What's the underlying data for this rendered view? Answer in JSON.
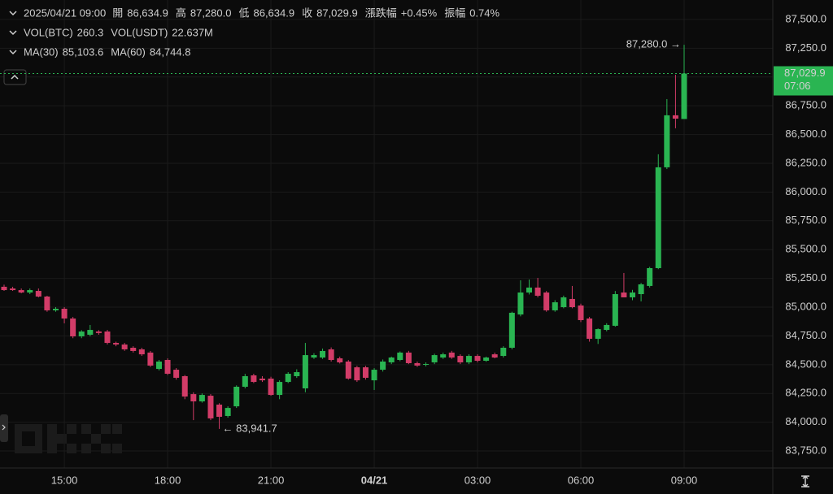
{
  "chart_data": {
    "type": "candlestick",
    "header": {
      "time": "2025/04/21 09:00",
      "rows": [
        [
          {
            "label": "開",
            "value": "86,634.9",
            "color": "#2fbf5b"
          },
          {
            "label": "高",
            "value": "87,280.0",
            "color": "#2fbf5b"
          },
          {
            "label": "低",
            "value": "86,634.9",
            "color": "#2fbf5b"
          },
          {
            "label": "收",
            "value": "87,029.9",
            "color": "#2fbf5b"
          },
          {
            "label": "漲跌幅",
            "value": "+0.45%",
            "color": "#2fbf5b"
          },
          {
            "label": "振幅",
            "value": "0.74%",
            "color": "#2fbf5b"
          }
        ],
        [
          {
            "label": "VOL(BTC)",
            "value": "260.3",
            "color": "#f09a37"
          },
          {
            "label": "VOL(USDT)",
            "value": "22.637M",
            "color": "#f09a37"
          }
        ],
        [
          {
            "label": "MA(30)",
            "value": "85,103.6",
            "color": "#f09a37"
          },
          {
            "label": "MA(60)",
            "value": "84,744.8",
            "color": "#e8457c"
          }
        ]
      ]
    },
    "categories": [
      null,
      null,
      null,
      null,
      null,
      null,
      null,
      "15:00",
      null,
      null,
      null,
      null,
      null,
      null,
      null,
      null,
      null,
      null,
      null,
      "18:00",
      null,
      null,
      null,
      null,
      null,
      null,
      null,
      null,
      null,
      null,
      null,
      "21:00",
      null,
      null,
      null,
      null,
      null,
      null,
      null,
      null,
      null,
      null,
      null,
      "04/21",
      null,
      null,
      null,
      null,
      null,
      null,
      null,
      null,
      null,
      null,
      null,
      "03:00",
      null,
      null,
      null,
      null,
      null,
      null,
      null,
      null,
      null,
      null,
      null,
      "06:00",
      null,
      null,
      null,
      null,
      null,
      null,
      null,
      null,
      null,
      null,
      null,
      "09:00"
    ],
    "open": [
      85177,
      85162,
      85148,
      85127,
      85141,
      85092,
      84972,
      84986,
      84901,
      84746,
      84760,
      84788,
      84788,
      84689,
      84675,
      84647,
      84633,
      84605,
      84463,
      84541,
      84456,
      84400,
      84244,
      84181,
      84230,
      84153,
      84054,
      84138,
      84308,
      84407,
      84379,
      84379,
      84237,
      84350,
      84400,
      84294,
      84562,
      84562,
      84633,
      84555,
      84527,
      84477,
      84477,
      84364,
      84456,
      84520,
      84541,
      84605,
      84513,
      84500,
      84520,
      84562,
      84605,
      84576,
      84520,
      84576,
      84534,
      84590,
      84576,
      84647,
      84936,
      85127,
      85170,
      85127,
      84972,
      85000,
      85071,
      85014,
      84901,
      84725,
      84802,
      84838,
      85127,
      85085,
      85113,
      85184,
      85339,
      86215,
      86667,
      86634.9
    ],
    "high": [
      85195,
      85177,
      85162,
      85162,
      85162,
      85099,
      85000,
      85000,
      84915,
      84800,
      84845,
      84800,
      84802,
      84700,
      84689,
      84660,
      84647,
      84619,
      84541,
      84555,
      84470,
      84410,
      84260,
      84250,
      84244,
      84165,
      84138,
      84320,
      84420,
      84421,
      84400,
      84395,
      84364,
      84435,
      84460,
      84689,
      84600,
      84640,
      84650,
      84570,
      84540,
      84490,
      84490,
      84470,
      84545,
      84570,
      84615,
      84620,
      84527,
      84520,
      84595,
      84605,
      84620,
      84590,
      84590,
      84590,
      84570,
      84605,
      84660,
      84960,
      85233,
      85240,
      85254,
      85140,
      85060,
      85100,
      85184,
      85030,
      84915,
      84815,
      84860,
      85140,
      85297,
      85150,
      85210,
      85350,
      86328,
      86808,
      87020,
      87280
    ],
    "low": [
      85141,
      85141,
      85120,
      85113,
      85085,
      84960,
      84960,
      84859,
      84730,
      84730,
      84746,
      84760,
      84675,
      84660,
      84620,
      84605,
      84576,
      84480,
      84450,
      84410,
      84370,
      84200,
      84018,
      84170,
      84018,
      83941.7,
      84040,
      84124,
      84294,
      84340,
      84350,
      84230,
      84200,
      84340,
      84385,
      84260,
      84550,
      84550,
      84527,
      84510,
      84370,
      84350,
      84370,
      84280,
      84440,
      84505,
      84530,
      84505,
      84480,
      84485,
      84505,
      84550,
      84550,
      84505,
      84505,
      84520,
      84525,
      84555,
      84562,
      84633,
      84920,
      85110,
      85085,
      84960,
      84960,
      84990,
      84990,
      84870,
      84700,
      84680,
      84790,
      84830,
      85085,
      85060,
      85050,
      85170,
      85330,
      86200,
      86554,
      86634.9
    ],
    "close": [
      85148,
      85148,
      85127,
      85148,
      85092,
      84972,
      84986,
      84901,
      84746,
      84788,
      84802,
      84775,
      84689,
      84675,
      84633,
      84619,
      84590,
      84492,
      84527,
      84421,
      84386,
      84223,
      84181,
      84237,
      84033,
      84047,
      84124,
      84308,
      84400,
      84350,
      84364,
      84237,
      84350,
      84421,
      84435,
      84583,
      84583,
      84619,
      84541,
      84520,
      84379,
      84364,
      84386,
      84456,
      84527,
      84562,
      84605,
      84513,
      84492,
      84506,
      84583,
      84590,
      84562,
      84520,
      84576,
      84534,
      84562,
      84562,
      84647,
      84951,
      85127,
      85170,
      85099,
      84972,
      85042,
      85085,
      85000,
      84887,
      84725,
      84809,
      84845,
      85113,
      85085,
      85127,
      85198,
      85339,
      86215,
      86667,
      86638,
      87029.9
    ],
    "up_color": "#2ab552",
    "down_color": "#d23c68",
    "ylim": [
      83602,
      87669
    ],
    "yticks": [
      {
        "value": 87500,
        "label": "87,500.0"
      },
      {
        "value": 87250,
        "label": "87,250.0"
      },
      {
        "value": 87000,
        "label": "87,000.0"
      },
      {
        "value": 86750,
        "label": "86,750.0"
      },
      {
        "value": 86500,
        "label": "86,500.0"
      },
      {
        "value": 86250,
        "label": "86,250.0"
      },
      {
        "value": 86000,
        "label": "86,000.0"
      },
      {
        "value": 85750,
        "label": "85,750.0"
      },
      {
        "value": 85500,
        "label": "85,500.0"
      },
      {
        "value": 85250,
        "label": "85,250.0"
      },
      {
        "value": 85000,
        "label": "85,000.0"
      },
      {
        "value": 84750,
        "label": "84,750.0"
      },
      {
        "value": 84500,
        "label": "84,500.0"
      },
      {
        "value": 84250,
        "label": "84,250.0"
      },
      {
        "value": 84000,
        "label": "84,000.0"
      },
      {
        "value": 83750,
        "label": "83,750.0"
      }
    ],
    "grid": true,
    "high_annotation": "87,280.0 →",
    "low_annotation": "← 83,941.7",
    "last_price_label": "87,029.9",
    "countdown": "07:06"
  }
}
